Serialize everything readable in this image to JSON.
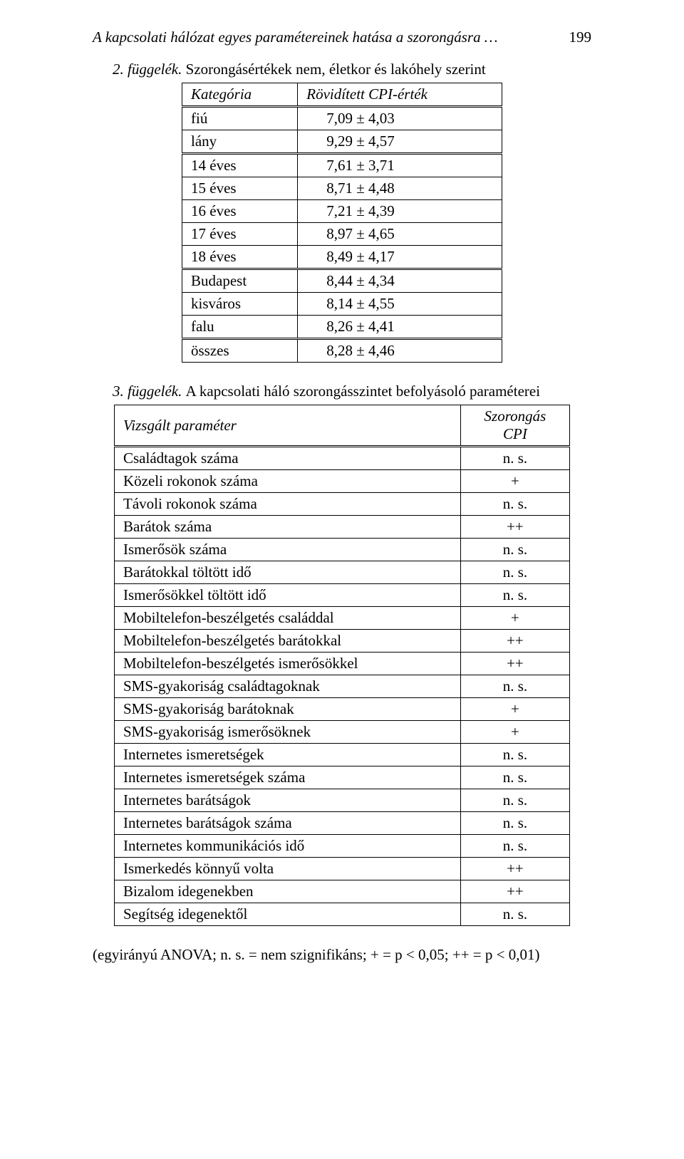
{
  "header": {
    "title": "A kapcsolati hálózat egyes paramétereinek hatása a szorongásra …",
    "page_number": "199"
  },
  "appendix2": {
    "label": "2. függelék.",
    "caption": "Szorongásértékek nem, életkor és lakóhely szerint",
    "columns": [
      "Kategória",
      "Rövidített CPI-érték"
    ],
    "groups": [
      {
        "rows": [
          {
            "k": "fiú",
            "v": "7,09 ± 4,03"
          },
          {
            "k": "lány",
            "v": "9,29 ± 4,57"
          }
        ]
      },
      {
        "rows": [
          {
            "k": "14 éves",
            "v": "7,61 ± 3,71"
          },
          {
            "k": "15 éves",
            "v": "8,71 ± 4,48"
          },
          {
            "k": "16 éves",
            "v": "7,21 ± 4,39"
          },
          {
            "k": "17 éves",
            "v": "8,97 ± 4,65"
          },
          {
            "k": "18 éves",
            "v": "8,49 ± 4,17"
          }
        ]
      },
      {
        "rows": [
          {
            "k": "Budapest",
            "v": "8,44 ± 4,34"
          },
          {
            "k": "kisváros",
            "v": "8,14 ± 4,55"
          },
          {
            "k": "falu",
            "v": "8,26 ± 4,41"
          }
        ]
      },
      {
        "rows": [
          {
            "k": "összes",
            "v": "8,28 ± 4,46"
          }
        ]
      }
    ]
  },
  "appendix3": {
    "label": "3. függelék.",
    "caption": "A kapcsolati háló szorongásszintet befolyásoló paraméterei",
    "columns": [
      "Vizsgált paraméter",
      "Szorongás\nCPI"
    ],
    "rows": [
      {
        "k": "Családtagok száma",
        "v": "n. s."
      },
      {
        "k": "Közeli rokonok száma",
        "v": "+"
      },
      {
        "k": "Távoli rokonok száma",
        "v": "n. s."
      },
      {
        "k": "Barátok száma",
        "v": "++"
      },
      {
        "k": "Ismerősök száma",
        "v": "n. s."
      },
      {
        "k": "Barátokkal töltött idő",
        "v": "n. s."
      },
      {
        "k": "Ismerősökkel töltött idő",
        "v": "n. s."
      },
      {
        "k": "Mobiltelefon-beszélgetés családdal",
        "v": "+"
      },
      {
        "k": "Mobiltelefon-beszélgetés barátokkal",
        "v": "++"
      },
      {
        "k": "Mobiltelefon-beszélgetés ismerősökkel",
        "v": "++"
      },
      {
        "k": "SMS-gyakoriság családtagoknak",
        "v": "n. s."
      },
      {
        "k": "SMS-gyakoriság barátoknak",
        "v": "+"
      },
      {
        "k": "SMS-gyakoriság ismerősöknek",
        "v": "+"
      },
      {
        "k": "Internetes ismeretségek",
        "v": "n. s."
      },
      {
        "k": "Internetes ismeretségek száma",
        "v": "n. s."
      },
      {
        "k": "Internetes barátságok",
        "v": "n. s."
      },
      {
        "k": "Internetes barátságok száma",
        "v": "n. s."
      },
      {
        "k": "Internetes kommunikációs idő",
        "v": "n. s."
      },
      {
        "k": "Ismerkedés könnyű volta",
        "v": "++"
      },
      {
        "k": "Bizalom idegenekben",
        "v": "++"
      },
      {
        "k": "Segítség idegenektől",
        "v": "n. s."
      }
    ]
  },
  "footnote": "(egyirányú ANOVA; n. s. = nem szignifikáns; + = p < 0,05; ++ = p < 0,01)"
}
